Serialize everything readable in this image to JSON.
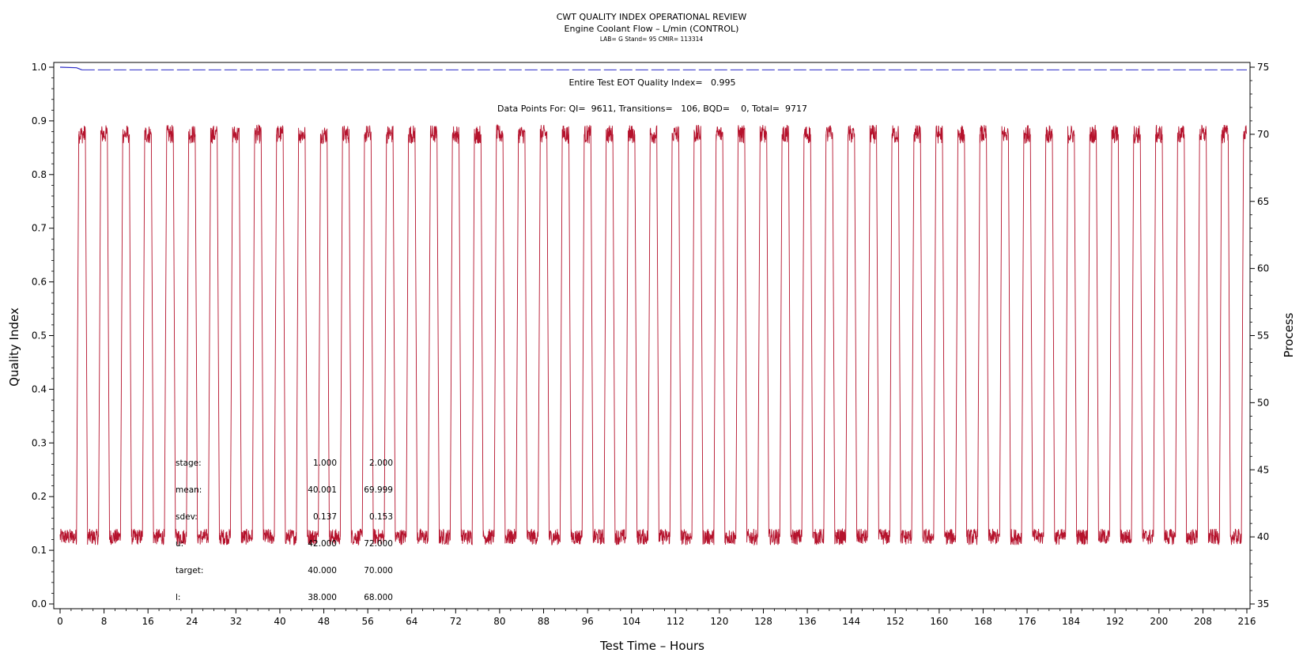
{
  "header": {
    "title": "CWT QUALITY INDEX OPERATIONAL REVIEW",
    "subtitle": "Engine Coolant Flow – L/min (CONTROL)",
    "lab_line": "LAB= G Stand= 95 CMIR= 113314"
  },
  "annotations": {
    "quality_index": "Entire Test EOT Quality Index=   0.995",
    "data_points": "Data Points For: QI=  9611, Transitions=   106, BQD=    0, Total=  9717"
  },
  "stats": {
    "rows": [
      {
        "label": "stage:",
        "v1": "1.000",
        "v2": "2.000"
      },
      {
        "label": "mean:",
        "v1": "40.001",
        "v2": "69.999"
      },
      {
        "label": "sdev:",
        "v1": "0.137",
        "v2": "0.153"
      },
      {
        "label": "u:",
        "v1": "42.000",
        "v2": "72.000"
      },
      {
        "label": "target:",
        "v1": "40.000",
        "v2": "70.000"
      },
      {
        "label": "l:",
        "v1": "38.000",
        "v2": "68.000"
      }
    ]
  },
  "chart_data": {
    "type": "line",
    "xlabel": "Test Time – Hours",
    "ylabel": "Quality Index",
    "y2label": "Process",
    "xlim": [
      0,
      216
    ],
    "ylim": [
      0,
      1.0
    ],
    "y2lim": [
      35,
      75
    ],
    "xticks": [
      0,
      8,
      16,
      24,
      32,
      40,
      48,
      56,
      64,
      72,
      80,
      88,
      96,
      104,
      112,
      120,
      128,
      136,
      144,
      152,
      160,
      168,
      176,
      184,
      192,
      200,
      208,
      216
    ],
    "yticks": [
      0.0,
      0.1,
      0.2,
      0.3,
      0.4,
      0.5,
      0.6,
      0.7,
      0.8,
      0.9,
      1.0
    ],
    "y2ticks": [
      35,
      40,
      45,
      50,
      55,
      60,
      65,
      70,
      75
    ],
    "grid": false,
    "colors": {
      "quality_index": "#2b2bc8",
      "process": "#b5122c"
    },
    "series": [
      {
        "axis": "left",
        "style": "solid then dashed",
        "points": [
          [
            0,
            1.0
          ],
          [
            3.0,
            0.999
          ],
          [
            4.0,
            0.995
          ],
          [
            216,
            0.995
          ]
        ]
      },
      {
        "axis": "right",
        "style": "solid",
        "period_hours": 4.0,
        "cycles": 54,
        "first_rise_hours": 3.0,
        "high_duration_hours": 1.2,
        "transition_hours": 0.4,
        "low_level": 40.0,
        "high_level": 70.0
      }
    ]
  }
}
